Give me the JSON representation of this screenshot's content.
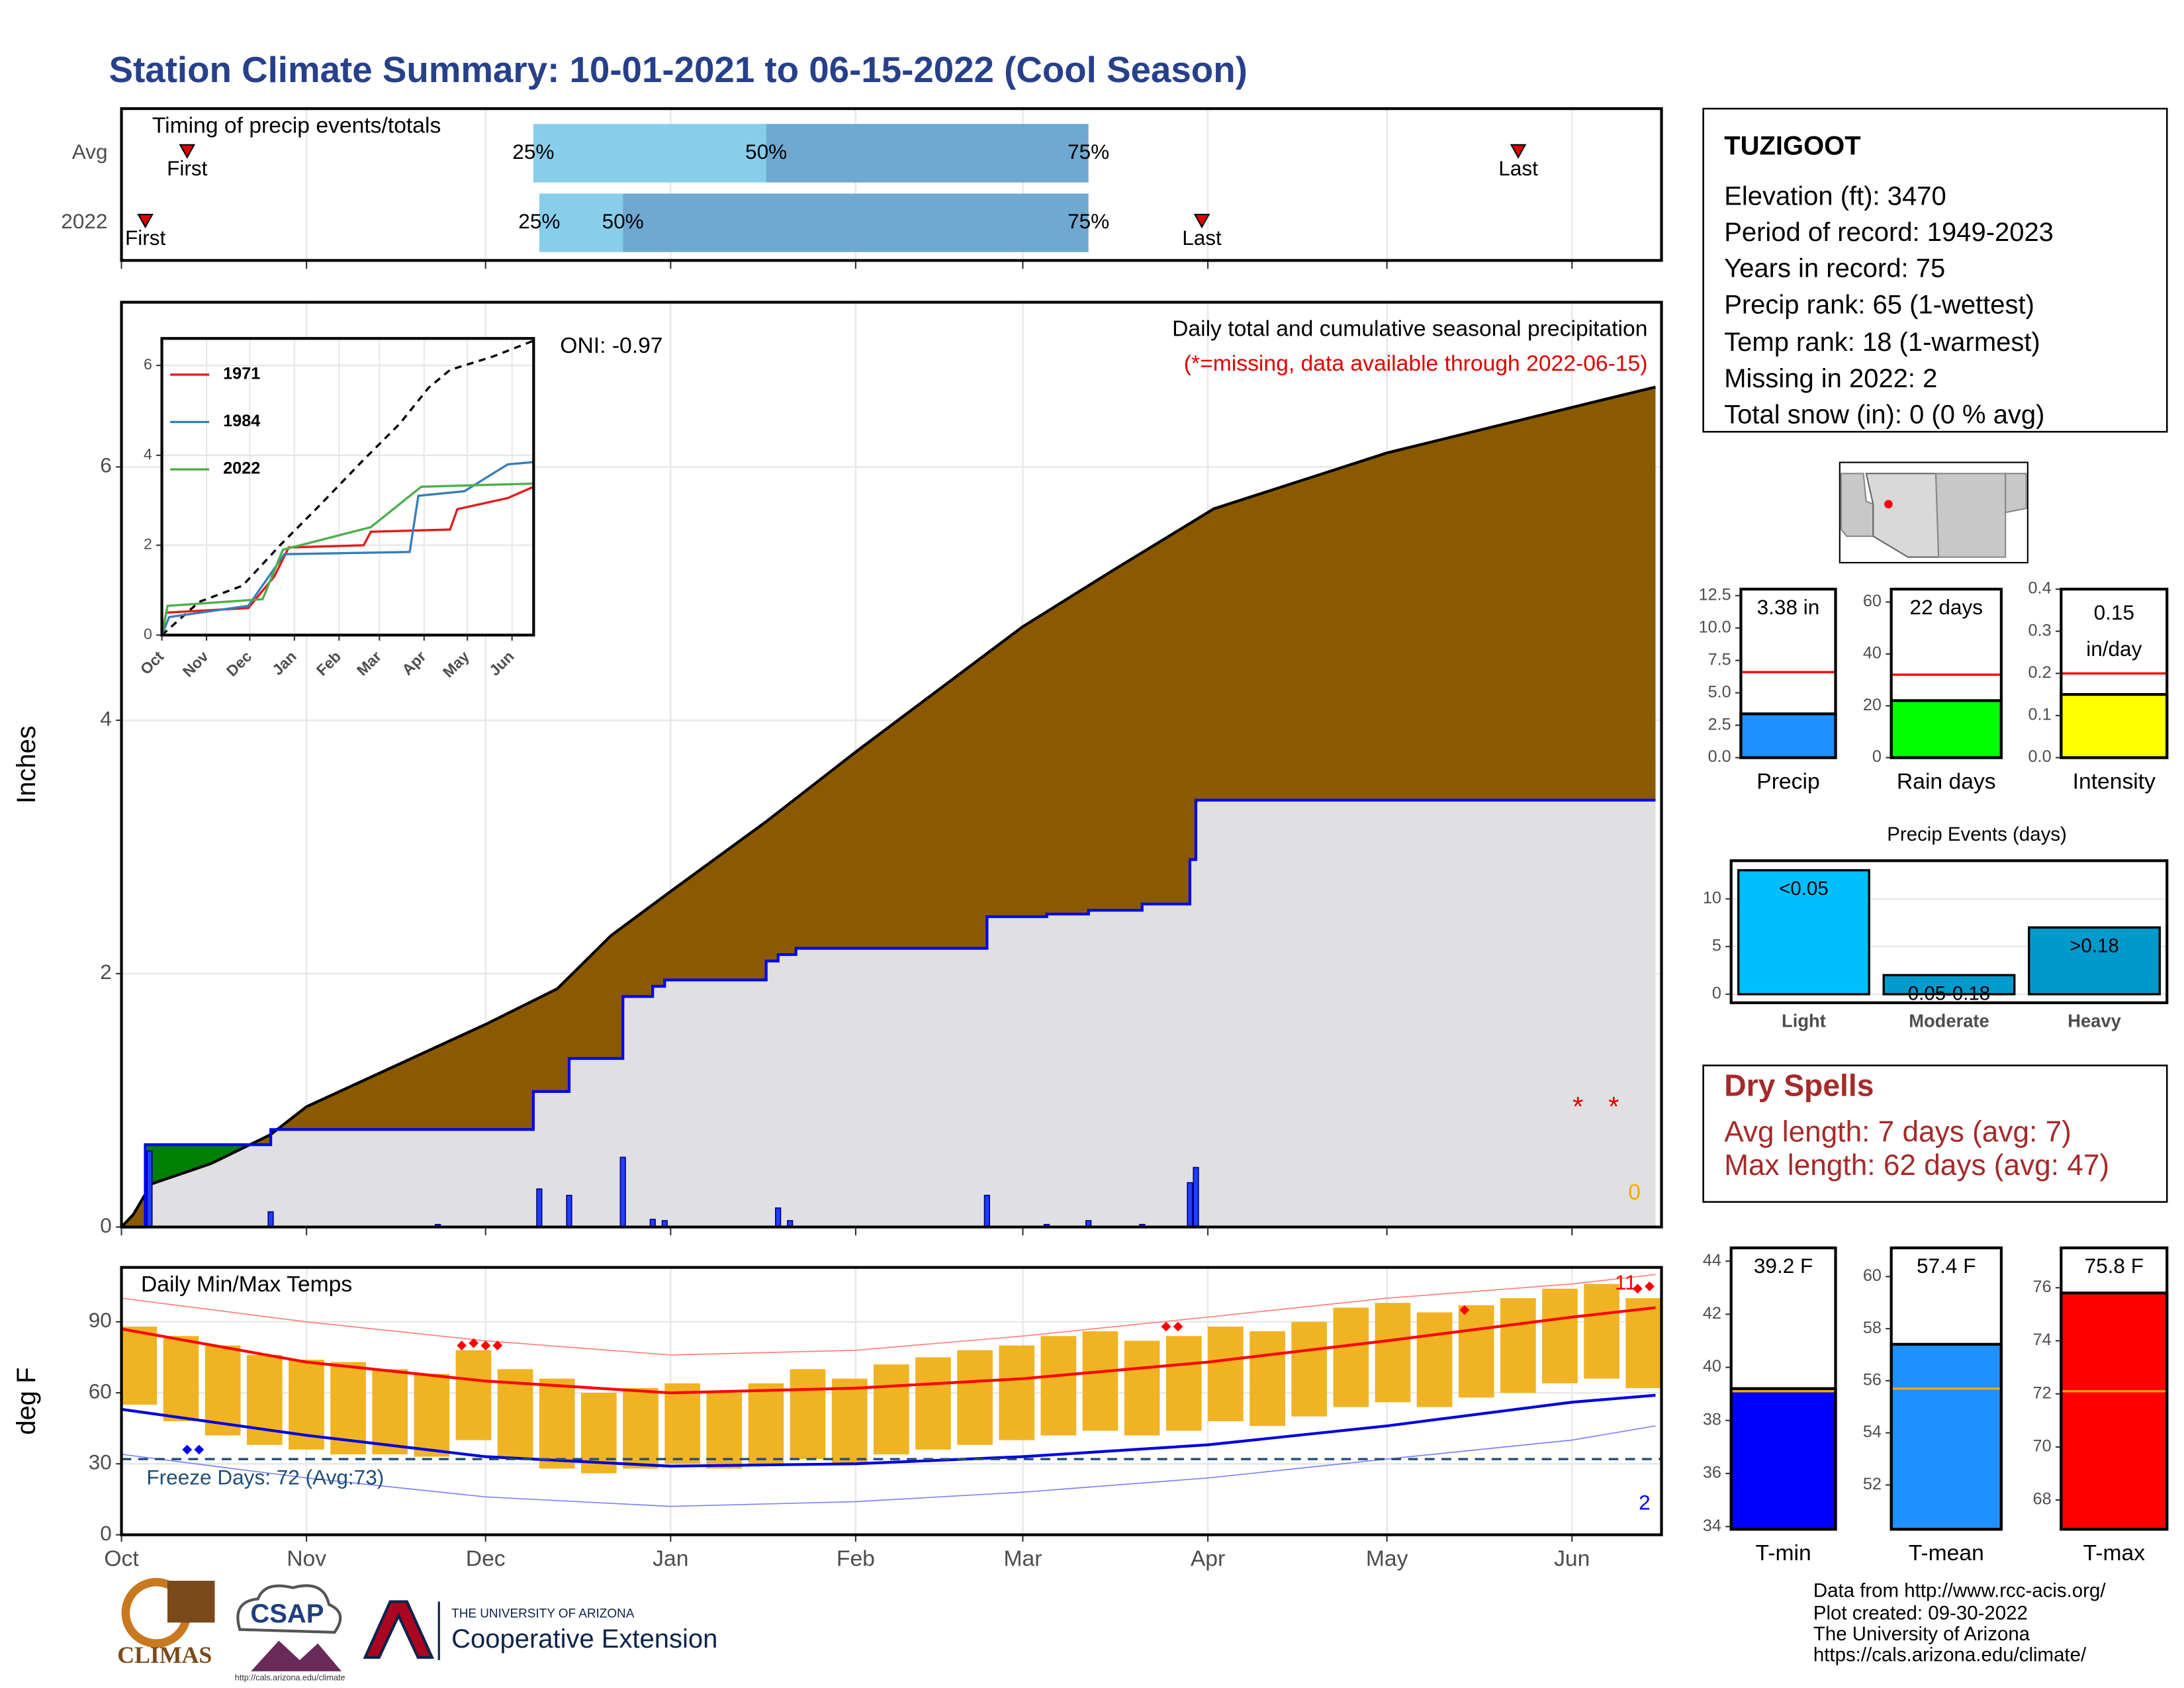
{
  "title": "Station Climate Summary: 10-01-2021 to 06-15-2022 (Cool Season)",
  "chart_data": [
    {
      "type": "timing",
      "title": "Timing of precip events/totals",
      "xlim": [
        0,
        258
      ],
      "marker_labels": {
        "first": "First",
        "last": "Last",
        "q25": "25%",
        "q50": "50%",
        "q75": "75%"
      },
      "colors": {
        "lower": "#87ceeb",
        "upper": "#6fa8d0",
        "marker": "#e00000"
      },
      "rows": [
        {
          "name": "Avg",
          "first": 11,
          "q25": 69,
          "q50": 108,
          "q75": 162,
          "last": 234
        },
        {
          "name": "2022",
          "first": 4,
          "q25": 70,
          "q50": 84,
          "q75": 162,
          "last": 181
        }
      ]
    },
    {
      "type": "cumulative",
      "ylabel": "Inches",
      "xlim": [
        0,
        258
      ],
      "ylim": [
        0,
        7.3
      ],
      "yticks": [
        0,
        2,
        4,
        6
      ],
      "grid": true,
      "oni": "ONI: -0.97",
      "caption": "Daily total and cumulative seasonal precipitation",
      "missing_note": "(*=missing, data available through 2022-06-15)",
      "snow": 0,
      "colors": {
        "above_avg": "#008000",
        "below_avg": "#8b5a00",
        "base": "#e0e0e2",
        "daily": "#1f3fff",
        "missing": "#e00000",
        "snow": "#ffa500"
      },
      "avg": {
        "color": "#000000",
        "x": [
          0,
          2,
          5,
          15,
          25,
          31,
          61,
          73,
          82,
          92,
          108,
          123,
          151,
          166,
          183,
          212,
          243,
          257
        ],
        "values": [
          0,
          0.1,
          0.34,
          0.5,
          0.73,
          0.95,
          1.6,
          1.88,
          2.3,
          2.65,
          3.2,
          3.75,
          4.74,
          5.18,
          5.67,
          6.11,
          6.47,
          6.63
        ]
      },
      "current": {
        "color": "#0000ff",
        "x": [
          0,
          4,
          4,
          25,
          25,
          69,
          69,
          75,
          75,
          84,
          84,
          89,
          89,
          91,
          91,
          108,
          108,
          110,
          110,
          113,
          113,
          145,
          145,
          155,
          155,
          162,
          162,
          171,
          171,
          179,
          179,
          180,
          180,
          257
        ],
        "values": [
          0,
          0,
          0.65,
          0.65,
          0.77,
          0.77,
          1.07,
          1.07,
          1.33,
          1.33,
          1.82,
          1.82,
          1.9,
          1.9,
          1.95,
          1.95,
          2.1,
          2.1,
          2.15,
          2.15,
          2.2,
          2.2,
          2.45,
          2.45,
          2.47,
          2.47,
          2.5,
          2.5,
          2.55,
          2.55,
          2.9,
          2.9,
          3.37,
          3.37
        ]
      },
      "daily": {
        "x": [
          4.7,
          25,
          53,
          70,
          75,
          84,
          89,
          91,
          110,
          112,
          145,
          155,
          162,
          171,
          179,
          180
        ],
        "values": [
          0.6,
          0.12,
          0.02,
          0.3,
          0.25,
          0.55,
          0.06,
          0.05,
          0.15,
          0.05,
          0.25,
          0.02,
          0.05,
          0.02,
          0.35,
          0.47
        ]
      },
      "missing": {
        "label": "*",
        "x": [
          244,
          250
        ],
        "values": [
          1,
          1
        ]
      }
    },
    {
      "type": "inset",
      "xlim": [
        0,
        258
      ],
      "ylim": [
        0,
        6.6
      ],
      "yticks": [
        0,
        2,
        4,
        6
      ],
      "grid": true,
      "xticks": [
        {
          "value": 0,
          "label": "Oct"
        },
        {
          "value": 31,
          "label": "Nov"
        },
        {
          "value": 61,
          "label": "Dec"
        },
        {
          "value": 92,
          "label": "Jan"
        },
        {
          "value": 123,
          "label": "Feb"
        },
        {
          "value": 151,
          "label": "Mar"
        },
        {
          "value": 182,
          "label": "Apr"
        },
        {
          "value": 212,
          "label": "May"
        },
        {
          "value": 243,
          "label": "Jun"
        }
      ],
      "avg": {
        "color": "#000000",
        "x": [
          0,
          26,
          56,
          82,
          110,
          140,
          165,
          185,
          200,
          230,
          258
        ],
        "values": [
          0,
          0.74,
          1.1,
          2.0,
          2.9,
          3.9,
          4.7,
          5.5,
          5.9,
          6.2,
          6.55
        ]
      },
      "series": [
        {
          "name": "1971",
          "color": "#e41a1c",
          "x": [
            0,
            3,
            60,
            78,
            88,
            140,
            145,
            200,
            205,
            240,
            258
          ],
          "values": [
            0,
            0.5,
            0.6,
            1.3,
            1.95,
            2.0,
            2.3,
            2.35,
            2.8,
            3.05,
            3.3
          ]
        },
        {
          "name": "1984",
          "color": "#377eb8",
          "x": [
            0,
            5,
            60,
            85,
            172,
            178,
            210,
            240,
            258
          ],
          "values": [
            0,
            0.4,
            0.65,
            1.8,
            1.85,
            3.1,
            3.2,
            3.8,
            3.85
          ]
        },
        {
          "name": "2022",
          "color": "#4daf4a",
          "x": [
            0,
            4,
            70,
            84,
            145,
            180,
            258
          ],
          "values": [
            0,
            0.65,
            0.8,
            1.9,
            2.4,
            3.3,
            3.37
          ]
        }
      ]
    },
    {
      "type": "temp",
      "title": "Daily Min/Max Temps",
      "ylabel": "deg F",
      "xlim": [
        0,
        258
      ],
      "ylim": [
        0,
        113
      ],
      "yticks": [
        0,
        30,
        60,
        90
      ],
      "grid": true,
      "xticks": [
        {
          "value": 0,
          "label": "Oct"
        },
        {
          "value": 31,
          "label": "Nov"
        },
        {
          "value": 61,
          "label": "Dec"
        },
        {
          "value": 92,
          "label": "Jan"
        },
        {
          "value": 123,
          "label": "Feb"
        },
        {
          "value": 151,
          "label": "Mar"
        },
        {
          "value": 182,
          "label": "Apr"
        },
        {
          "value": 212,
          "label": "May"
        },
        {
          "value": 243,
          "label": "Jun"
        }
      ],
      "freeze_line": 32,
      "freeze_label": "Freeze Days: 72 (Avg:73)",
      "record_high_count": 11,
      "record_low_count": 2,
      "colors": {
        "bars": "#f0b323",
        "normal_max": "#ff0000",
        "normal_min": "#0000dd",
        "extreme_max": "#ff8080",
        "extreme_min": "#8080ff",
        "freeze": "#1f4e79",
        "record_high": "#ff0000",
        "record_low": "#0000ff"
      },
      "days": [
        0,
        7,
        14,
        21,
        28,
        35,
        42,
        49,
        56,
        63,
        70,
        77,
        84,
        91,
        98,
        105,
        112,
        119,
        126,
        133,
        140,
        147,
        154,
        161,
        168,
        175,
        182,
        189,
        196,
        203,
        210,
        217,
        224,
        231,
        238,
        245,
        252
      ],
      "highs": [
        88,
        84,
        80,
        76,
        74,
        73,
        70,
        68,
        78,
        70,
        66,
        60,
        62,
        64,
        60,
        64,
        70,
        66,
        72,
        75,
        78,
        80,
        84,
        86,
        82,
        84,
        88,
        86,
        90,
        96,
        98,
        94,
        97,
        100,
        104,
        106,
        100
      ],
      "lows": [
        55,
        48,
        42,
        38,
        36,
        34,
        34,
        33,
        40,
        32,
        28,
        26,
        28,
        30,
        28,
        30,
        32,
        30,
        34,
        36,
        38,
        40,
        42,
        44,
        42,
        44,
        48,
        46,
        50,
        54,
        56,
        54,
        58,
        60,
        64,
        66,
        62
      ],
      "normals": {
        "x": [
          0,
          31,
          61,
          92,
          123,
          151,
          182,
          212,
          243,
          257
        ],
        "max": [
          87,
          73,
          65,
          60,
          62,
          66,
          73,
          82,
          92,
          96
        ],
        "min": [
          53,
          42,
          33,
          29,
          30,
          33,
          38,
          46,
          56,
          59
        ]
      },
      "extremes": {
        "x": [
          0,
          31,
          61,
          92,
          123,
          151,
          182,
          212,
          243,
          257
        ],
        "max": [
          100,
          90,
          82,
          76,
          78,
          84,
          92,
          100,
          106,
          110
        ],
        "min": [
          34,
          24,
          16,
          12,
          14,
          18,
          24,
          32,
          40,
          46
        ]
      },
      "record_highs": {
        "x": [
          57,
          59,
          61,
          63,
          175,
          177,
          225,
          254,
          256
        ],
        "values": [
          80,
          81,
          80,
          80,
          88,
          88,
          95,
          104,
          105
        ]
      },
      "record_lows": {
        "x": [
          11,
          13
        ],
        "values": [
          36,
          36
        ]
      }
    },
    {
      "type": "single_bar",
      "categories": [
        "Precip"
      ],
      "values": [
        3.38
      ],
      "value_labels": [
        "3.38 in"
      ],
      "normal": 6.6,
      "color": "#1e90ff",
      "normal_color": "#ff0000",
      "ylim": [
        0,
        13
      ],
      "yticks": [
        {
          "value": 0,
          "label": "0.0"
        },
        2.5,
        {
          "value": 5,
          "label": "5.0"
        },
        7.5,
        {
          "value": 10,
          "label": "10.0"
        },
        12.5
      ]
    },
    {
      "type": "single_bar",
      "categories": [
        "Rain days"
      ],
      "values": [
        22
      ],
      "value_labels": [
        "22 days"
      ],
      "normal": 32,
      "color": "#00ff00",
      "normal_color": "#ff0000",
      "ylim": [
        0,
        65
      ],
      "yticks": [
        0,
        20,
        40,
        60
      ]
    },
    {
      "type": "single_bar",
      "categories": [
        "Intensity"
      ],
      "values": [
        0.15
      ],
      "value_labels": [
        "0.15"
      ],
      "unit": "in/day",
      "normal": 0.2,
      "color": "#ffff00",
      "normal_color": "#ff0000",
      "ylim": [
        0,
        0.4
      ],
      "yticks": [
        {
          "value": 0,
          "label": "0.0"
        },
        0.1,
        0.2,
        0.3,
        0.4
      ]
    },
    {
      "type": "bar",
      "title": "Precip Events (days)",
      "categories": [
        "Light",
        "Moderate",
        "Heavy"
      ],
      "values": [
        13,
        2,
        7
      ],
      "value_labels": [
        "<0.05",
        "0.05-0.18",
        ">0.18"
      ],
      "colors": [
        "#00bfff",
        "#009acd",
        "#0099cc"
      ],
      "ylim": [
        -0.9,
        14
      ],
      "yticks": [
        0,
        5,
        10
      ],
      "grid": true
    },
    {
      "type": "single_bar",
      "categories": [
        "T-min"
      ],
      "values": [
        39.2
      ],
      "value_labels": [
        "39.2 F"
      ],
      "normal": 39.1,
      "color": "#0000ff",
      "normal_color": "#ffa500",
      "ylim": [
        33.9,
        44.5
      ],
      "yticks": [
        34,
        36,
        38,
        40,
        42,
        44
      ]
    },
    {
      "type": "single_bar",
      "categories": [
        "T-mean"
      ],
      "values": [
        57.4
      ],
      "value_labels": [
        "57.4 F"
      ],
      "normal": 55.7,
      "color": "#1e90ff",
      "normal_color": "#ffa500",
      "ylim": [
        50.3,
        61.1
      ],
      "yticks": [
        52,
        54,
        56,
        58,
        60
      ]
    },
    {
      "type": "single_bar",
      "categories": [
        "T-max"
      ],
      "values": [
        75.8
      ],
      "value_labels": [
        "75.8 F"
      ],
      "normal": 72.1,
      "color": "#ff0000",
      "normal_color": "#ffa500",
      "ylim": [
        66.9,
        77.5
      ],
      "yticks": [
        68,
        70,
        72,
        74,
        76
      ]
    }
  ],
  "station": {
    "name": "TUZIGOOT",
    "lines": [
      "Elevation (ft): 3470",
      "Period of record: 1949-2023",
      "Years in record: 75",
      "Precip rank: 65 (1-wettest)",
      "Temp rank: 18 (1-warmest)",
      "Missing in 2022: 2",
      "Total snow (in): 0 (0 % avg)"
    ]
  },
  "dry_spells": {
    "title": "Dry Spells",
    "lines": [
      "Avg length: 7 days (avg: 7)",
      "Max length: 62 days (avg: 47)"
    ]
  },
  "footer": [
    "Data from http://www.rcc-acis.org/",
    "Plot created: 09-30-2022",
    "The University of Arizona",
    "https://cals.arizona.edu/climate/"
  ],
  "logos": {
    "climas": "CLIMAS",
    "csap": "CSAP",
    "csap_url": "http://cals.arizona.edu/climate",
    "ua": "THE UNIVERSITY OF ARIZONA",
    "coop": "Cooperative Extension"
  }
}
